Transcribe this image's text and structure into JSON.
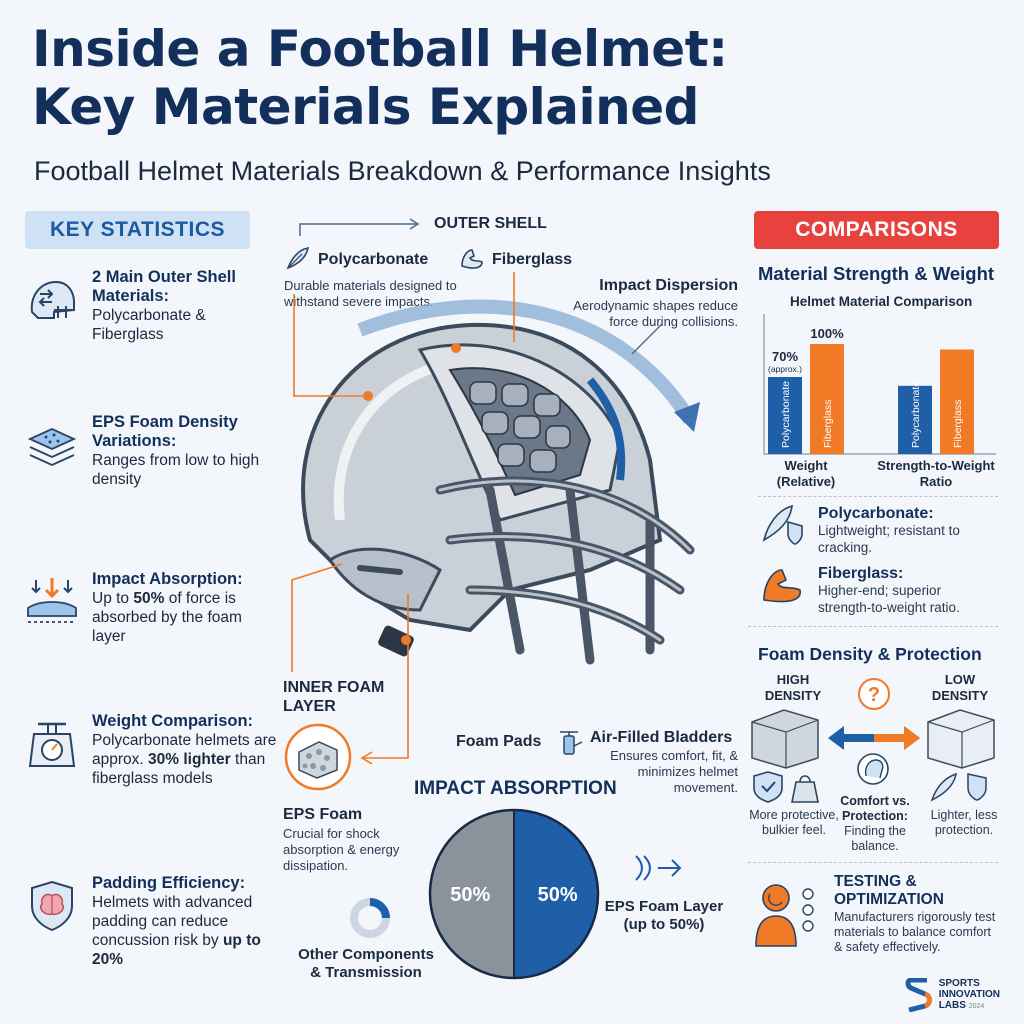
{
  "header": {
    "title_line1": "Inside a Football Helmet:",
    "title_line2": "Key Materials Explained",
    "subtitle": "Football Helmet Materials Breakdown & Performance Insights"
  },
  "key_stats": {
    "badge": "KEY STATISTICS",
    "items": [
      {
        "icon": "helmet-arrows-icon",
        "head": "2 Main Outer Shell Materials:",
        "body": "Polycarbonate & Fiberglass"
      },
      {
        "icon": "foam-layers-icon",
        "head": "EPS Foam Density Variations:",
        "body": "Ranges from low to high density"
      },
      {
        "icon": "impact-arrows-icon",
        "head": "Impact Absorption:",
        "body_pre": "Up to ",
        "body_hl": "50%",
        "body_post": " of force is absorbed by the foam layer"
      },
      {
        "icon": "scale-icon",
        "head": "Weight Comparison:",
        "body_pre": "Polycarbonate helmets are approx. ",
        "body_hl": "30% lighter",
        "body_post": " than fiberglass models"
      },
      {
        "icon": "brain-shield-icon",
        "head": "Padding Efficiency:",
        "body_pre": "Helmets with advanced padding can reduce concussion risk by ",
        "body_hl": "up to 20%",
        "body_post": ""
      }
    ]
  },
  "helmet": {
    "outer_shell": "OUTER SHELL",
    "polycarbonate": {
      "title": "Polycarbonate",
      "desc": "Durable materials designed to withstand severe impacts."
    },
    "fiberglass": {
      "title": "Fiberglass"
    },
    "impact_dispersion": {
      "title": "Impact Dispersion",
      "desc": "Aerodynamic shapes reduce force during collisions."
    },
    "inner_foam": {
      "title": "INNER FOAM LAYER"
    },
    "eps_foam": {
      "title": "EPS Foam",
      "desc": "Crucial for shock absorption & energy dissipation."
    },
    "foam_pads": "Foam Pads",
    "bladders": {
      "title": "Air-Filled Bladders",
      "desc": "Ensures comfort, fit, & minimizes helmet movement."
    }
  },
  "impact_absorption": {
    "title": "IMPACT ABSORPTION",
    "slices": [
      {
        "label": "Other Components & Transmission",
        "value": 50,
        "display": "50%",
        "color": "#8a929c"
      },
      {
        "label": "EPS Foam Layer (up to 50%)",
        "value": 50,
        "display": "50%",
        "color": "#1f5fa8"
      }
    ]
  },
  "comparisons": {
    "badge": "COMPARISONS",
    "section_title": "Material Strength & Weight",
    "chart_title": "Helmet Material Comparison",
    "groups": [
      {
        "label": "Weight (Relative)",
        "bars": [
          {
            "name": "Polycarbonate",
            "value": 70,
            "label": "70%",
            "note": "(approx.)",
            "color": "#1f5fa8"
          },
          {
            "name": "Fiberglass",
            "value": 100,
            "label": "100%",
            "color": "#f07a25"
          }
        ]
      },
      {
        "label": "Strength-to-Weight Ratio",
        "bars": [
          {
            "name": "Polycarbonate",
            "value": 62,
            "color": "#1f5fa8"
          },
          {
            "name": "Fiberglass",
            "value": 95,
            "color": "#f07a25"
          }
        ]
      }
    ],
    "materials": [
      {
        "icon": "feather-shield-icon",
        "head": "Polycarbonate:",
        "body": "Lightweight; resistant to cracking."
      },
      {
        "icon": "muscle-icon",
        "head": "Fiberglass:",
        "body": "Higher-end; superior strength-to-weight ratio."
      }
    ]
  },
  "foam_density": {
    "title": "Foam Density & Protection",
    "high": "HIGH DENSITY",
    "low": "LOW DENSITY",
    "high_desc": "More protective, bulkier feel.",
    "mid_head": "Comfort vs. Protection:",
    "mid_desc": "Finding the balance.",
    "low_desc": "Lighter, less protection."
  },
  "testing": {
    "head": "TESTING & OPTIMIZATION",
    "body": "Manufacturers rigorously test materials to balance comfort & safety effectively."
  },
  "brand": {
    "name_line1": "SPORTS",
    "name_line2": "INNOVATION",
    "name_line3": "LABS",
    "year": "2024"
  },
  "colors": {
    "navy": "#12305b",
    "blue": "#1f5fa8",
    "orange": "#f07a25",
    "red": "#e8423e"
  }
}
